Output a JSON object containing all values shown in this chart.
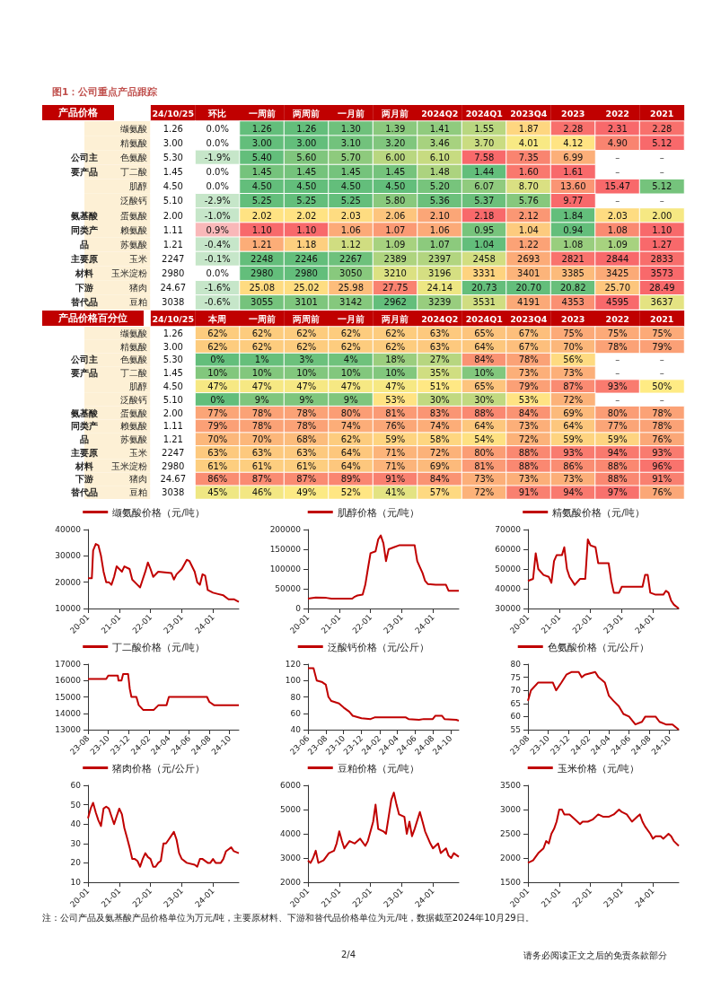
{
  "chart_data": [
    {
      "type": "heatmap",
      "title": "图1：公司重点产品跟踪",
      "ylabel": "产品价格",
      "categories": [
        "24/10/25",
        "环比",
        "一周前",
        "两周前",
        "一月前",
        "两月前",
        "2024Q2",
        "2024Q1",
        "2023Q4",
        "2023",
        "2022",
        "2021"
      ],
      "y_categories": [
        "缬氨酸",
        "精氨酸",
        "色氨酸",
        "丁二酸",
        "肌醇",
        "泛酸钙",
        "蛋氨酸",
        "赖氨酸",
        "苏氨酸",
        "玉米",
        "玉米淀粉",
        "猪肉",
        "豆粕"
      ],
      "y2_categories": [
        null,
        null,
        "公司主",
        "要产品",
        null,
        null,
        "氨基酸",
        "同类产",
        "品",
        "主要原",
        "材料",
        "下游",
        "替代品"
      ],
      "cells": [
        [
          1.26,
          0.0,
          1.26,
          1.26,
          1.3,
          1.39,
          1.41,
          1.55,
          1.87,
          2.28,
          2.31,
          2.28
        ],
        [
          3.0,
          0.0,
          3.0,
          3.0,
          3.1,
          3.2,
          3.46,
          3.7,
          4.01,
          4.12,
          4.9,
          5.12
        ],
        [
          5.3,
          -1.9,
          5.4,
          5.6,
          5.7,
          6.0,
          6.1,
          7.58,
          7.35,
          6.99,
          null,
          null
        ],
        [
          1.45,
          0.0,
          1.45,
          1.45,
          1.45,
          1.45,
          1.48,
          1.44,
          1.6,
          1.61,
          null,
          null
        ],
        [
          4.5,
          0.0,
          4.5,
          4.5,
          4.5,
          4.5,
          5.2,
          6.07,
          8.7,
          13.6,
          15.47,
          5.12
        ],
        [
          5.1,
          -2.9,
          5.25,
          5.25,
          5.25,
          5.8,
          5.36,
          5.37,
          5.76,
          9.77,
          null,
          null
        ],
        [
          2.0,
          -1.0,
          2.02,
          2.02,
          2.03,
          2.06,
          2.1,
          2.18,
          2.12,
          1.84,
          2.03,
          2.0
        ],
        [
          1.11,
          0.9,
          1.1,
          1.1,
          1.06,
          1.07,
          1.06,
          0.95,
          1.04,
          0.94,
          1.08,
          1.1
        ],
        [
          1.21,
          -0.4,
          1.21,
          1.18,
          1.12,
          1.09,
          1.07,
          1.04,
          1.22,
          1.08,
          1.09,
          1.27
        ],
        [
          2247,
          -0.1,
          2248,
          2246,
          2267,
          2389,
          2397,
          2458,
          2693,
          2821,
          2844,
          2833
        ],
        [
          2980,
          0.0,
          2980,
          2980,
          3050,
          3210,
          3196,
          3331,
          3401,
          3385,
          3425,
          3573
        ],
        [
          24.67,
          -1.6,
          25.08,
          25.02,
          25.98,
          27.75,
          24.14,
          20.73,
          20.7,
          20.82,
          25.7,
          28.49
        ],
        [
          3038,
          -0.6,
          3055,
          3101,
          3142,
          2962,
          3239,
          3531,
          4191,
          4353,
          4595,
          3637
        ]
      ],
      "cell_labels": [
        [
          "1.26",
          "0.0%",
          "1.26",
          "1.26",
          "1.30",
          "1.39",
          "1.41",
          "1.55",
          "1.87",
          "2.28",
          "2.31",
          "2.28"
        ],
        [
          "3.00",
          "0.0%",
          "3.00",
          "3.00",
          "3.10",
          "3.20",
          "3.46",
          "3.70",
          "4.01",
          "4.12",
          "4.90",
          "5.12"
        ],
        [
          "5.30",
          "-1.9%",
          "5.40",
          "5.60",
          "5.70",
          "6.00",
          "6.10",
          "7.58",
          "7.35",
          "6.99",
          "–",
          "–"
        ],
        [
          "1.45",
          "0.0%",
          "1.45",
          "1.45",
          "1.45",
          "1.45",
          "1.48",
          "1.44",
          "1.60",
          "1.61",
          "–",
          "–"
        ],
        [
          "4.50",
          "0.0%",
          "4.50",
          "4.50",
          "4.50",
          "4.50",
          "5.20",
          "6.07",
          "8.70",
          "13.60",
          "15.47",
          "5.12"
        ],
        [
          "5.10",
          "-2.9%",
          "5.25",
          "5.25",
          "5.25",
          "5.80",
          "5.36",
          "5.37",
          "5.76",
          "9.77",
          "–",
          "–"
        ],
        [
          "2.00",
          "-1.0%",
          "2.02",
          "2.02",
          "2.03",
          "2.06",
          "2.10",
          "2.18",
          "2.12",
          "1.84",
          "2.03",
          "2.00"
        ],
        [
          "1.11",
          "0.9%",
          "1.10",
          "1.10",
          "1.06",
          "1.07",
          "1.06",
          "0.95",
          "1.04",
          "0.94",
          "1.08",
          "1.10"
        ],
        [
          "1.21",
          "-0.4%",
          "1.21",
          "1.18",
          "1.12",
          "1.09",
          "1.07",
          "1.04",
          "1.22",
          "1.08",
          "1.09",
          "1.27"
        ],
        [
          "2247",
          "-0.1%",
          "2248",
          "2246",
          "2267",
          "2389",
          "2397",
          "2458",
          "2693",
          "2821",
          "2844",
          "2833"
        ],
        [
          "2980",
          "0.0%",
          "2980",
          "2980",
          "3050",
          "3210",
          "3196",
          "3331",
          "3401",
          "3385",
          "3425",
          "3573"
        ],
        [
          "24.67",
          "-1.6%",
          "25.08",
          "25.02",
          "25.98",
          "27.75",
          "24.14",
          "20.73",
          "20.70",
          "20.82",
          "25.70",
          "28.49"
        ],
        [
          "3038",
          "-0.6%",
          "3055",
          "3101",
          "3142",
          "2962",
          "3239",
          "3531",
          "4191",
          "4353",
          "4595",
          "3637"
        ]
      ]
    },
    {
      "type": "heatmap",
      "ylabel": "产品价格百分位",
      "categories": [
        "24/10/25",
        "本周",
        "一周前",
        "两周前",
        "一月前",
        "两月前",
        "2024Q2",
        "2024Q1",
        "2023Q4",
        "2023",
        "2022",
        "2021"
      ],
      "y_categories": [
        "缬氨酸",
        "精氨酸",
        "色氨酸",
        "丁二酸",
        "肌醇",
        "泛酸钙",
        "蛋氨酸",
        "赖氨酸",
        "苏氨酸",
        "玉米",
        "玉米淀粉",
        "猪肉",
        "豆粕"
      ],
      "y2_categories": [
        null,
        null,
        "公司主",
        "要产品",
        null,
        null,
        "氨基酸",
        "同类产",
        "品",
        "主要原",
        "材料",
        "下游",
        "替代品"
      ],
      "cells": [
        [
          1.26,
          62,
          62,
          62,
          62,
          62,
          63,
          65,
          67,
          75,
          75,
          75
        ],
        [
          3.0,
          62,
          62,
          62,
          62,
          62,
          63,
          64,
          67,
          70,
          78,
          79
        ],
        [
          5.3,
          0,
          1,
          3,
          4,
          18,
          27,
          84,
          78,
          56,
          null,
          null
        ],
        [
          1.45,
          10,
          10,
          10,
          10,
          10,
          35,
          10,
          73,
          73,
          null,
          null
        ],
        [
          4.5,
          47,
          47,
          47,
          47,
          47,
          51,
          65,
          79,
          87,
          93,
          50
        ],
        [
          5.1,
          0,
          9,
          9,
          9,
          53,
          30,
          30,
          53,
          72,
          null,
          null
        ],
        [
          2.0,
          77,
          78,
          78,
          80,
          81,
          83,
          88,
          84,
          69,
          80,
          78
        ],
        [
          1.11,
          79,
          78,
          78,
          74,
          76,
          74,
          64,
          73,
          64,
          77,
          78
        ],
        [
          1.21,
          70,
          70,
          68,
          62,
          59,
          58,
          54,
          72,
          59,
          59,
          76
        ],
        [
          2247,
          63,
          63,
          63,
          64,
          71,
          72,
          80,
          88,
          93,
          94,
          93
        ],
        [
          2980,
          61,
          61,
          61,
          64,
          71,
          69,
          81,
          88,
          86,
          88,
          96
        ],
        [
          24.67,
          86,
          87,
          87,
          89,
          91,
          84,
          73,
          73,
          73,
          88,
          91
        ],
        [
          3038,
          45,
          46,
          49,
          52,
          41,
          57,
          72,
          91,
          94,
          97,
          76
        ]
      ],
      "cell_labels": [
        [
          "1.26",
          "62%",
          "62%",
          "62%",
          "62%",
          "62%",
          "63%",
          "65%",
          "67%",
          "75%",
          "75%",
          "75%"
        ],
        [
          "3.00",
          "62%",
          "62%",
          "62%",
          "62%",
          "62%",
          "63%",
          "64%",
          "67%",
          "70%",
          "78%",
          "79%"
        ],
        [
          "5.30",
          "0%",
          "1%",
          "3%",
          "4%",
          "18%",
          "27%",
          "84%",
          "78%",
          "56%",
          "–",
          "–"
        ],
        [
          "1.45",
          "10%",
          "10%",
          "10%",
          "10%",
          "10%",
          "35%",
          "10%",
          "73%",
          "73%",
          "–",
          "–"
        ],
        [
          "4.50",
          "47%",
          "47%",
          "47%",
          "47%",
          "47%",
          "51%",
          "65%",
          "79%",
          "87%",
          "93%",
          "50%"
        ],
        [
          "5.10",
          "0%",
          "9%",
          "9%",
          "9%",
          "53%",
          "30%",
          "30%",
          "53%",
          "72%",
          "–",
          "–"
        ],
        [
          "2.00",
          "77%",
          "78%",
          "78%",
          "80%",
          "81%",
          "83%",
          "88%",
          "84%",
          "69%",
          "80%",
          "78%"
        ],
        [
          "1.11",
          "79%",
          "78%",
          "78%",
          "74%",
          "76%",
          "74%",
          "64%",
          "73%",
          "64%",
          "77%",
          "78%"
        ],
        [
          "1.21",
          "70%",
          "70%",
          "68%",
          "62%",
          "59%",
          "58%",
          "54%",
          "72%",
          "59%",
          "59%",
          "76%"
        ],
        [
          "2247",
          "63%",
          "63%",
          "63%",
          "64%",
          "71%",
          "72%",
          "80%",
          "88%",
          "93%",
          "94%",
          "93%"
        ],
        [
          "2980",
          "61%",
          "61%",
          "61%",
          "64%",
          "71%",
          "69%",
          "81%",
          "88%",
          "86%",
          "88%",
          "96%"
        ],
        [
          "24.67",
          "86%",
          "87%",
          "87%",
          "89%",
          "91%",
          "84%",
          "73%",
          "73%",
          "73%",
          "88%",
          "91%"
        ],
        [
          "3038",
          "45%",
          "46%",
          "49%",
          "52%",
          "41%",
          "57%",
          "72%",
          "91%",
          "94%",
          "97%",
          "76%"
        ]
      ]
    },
    {
      "type": "line",
      "legend": "top",
      "xlim": [
        "2020-01-01",
        "2024-10-29"
      ],
      "ylim": [
        10000,
        40000
      ],
      "yticks": [
        10000,
        20000,
        30000,
        40000
      ],
      "xticks": [
        {
          "value": "2020-01-01",
          "label": "20-01"
        },
        {
          "value": "2021-01-01",
          "label": "21-01"
        },
        {
          "value": "2022-01-01",
          "label": "22-01"
        },
        {
          "value": "2023-01-01",
          "label": "23-01"
        },
        {
          "value": "2024-01-01",
          "label": "24-01"
        }
      ],
      "x": [
        "2020-01-01",
        "2020-02-15",
        "2020-03-01",
        "2020-04-01",
        "2020-05-01",
        "2020-06-01",
        "2020-07-01",
        "2020-08-01",
        "2020-09-01",
        "2020-10-01",
        "2020-11-01",
        "2020-12-01",
        "2021-02-01",
        "2021-03-01",
        "2021-05-01",
        "2021-06-01",
        "2021-08-01",
        "2021-09-01",
        "2021-10-01",
        "2021-11-01",
        "2021-12-01",
        "2022-01-01",
        "2022-02-01",
        "2022-04-01",
        "2022-09-01",
        "2022-10-01",
        "2022-11-01",
        "2023-01-01",
        "2023-03-01",
        "2023-04-01",
        "2023-06-01",
        "2023-07-01",
        "2023-08-01",
        "2023-09-01",
        "2023-10-01",
        "2023-11-01",
        "2024-01-01",
        "2024-03-01",
        "2024-05-01",
        "2024-07-01",
        "2024-09-01",
        "2024-10-29"
      ],
      "series": [
        {
          "name": "缬氨酸价格（元/吨）",
          "color": "#c00000",
          "values": [
            21500,
            21500,
            32000,
            34500,
            34000,
            30000,
            24000,
            20000,
            20000,
            19000,
            22000,
            26000,
            24000,
            26000,
            25000,
            21000,
            19000,
            18000,
            21000,
            24000,
            27500,
            25000,
            22000,
            24000,
            23500,
            21000,
            23000,
            25000,
            28500,
            28000,
            24000,
            20000,
            19000,
            23000,
            22500,
            17000,
            16000,
            15500,
            15000,
            13500,
            13500,
            12500
          ]
        }
      ]
    },
    {
      "type": "line",
      "legend": "top",
      "xlim": [
        "2020-01-01",
        "2024-10-29"
      ],
      "ylim": [
        0,
        200000
      ],
      "yticks": [
        0,
        50000,
        100000,
        150000,
        200000
      ],
      "xticks": [
        {
          "value": "2020-01-01",
          "label": "20-01"
        },
        {
          "value": "2021-01-01",
          "label": "21-01"
        },
        {
          "value": "2022-01-01",
          "label": "22-01"
        },
        {
          "value": "2023-01-01",
          "label": "23-01"
        },
        {
          "value": "2024-01-01",
          "label": "24-01"
        }
      ],
      "x": [
        "2020-01-01",
        "2020-04-01",
        "2020-08-01",
        "2020-10-01",
        "2021-06-01",
        "2021-07-01",
        "2021-08-01",
        "2021-10-01",
        "2021-11-01",
        "2021-12-01",
        "2022-01-01",
        "2022-03-01",
        "2022-04-01",
        "2022-05-01",
        "2022-06-01",
        "2022-07-01",
        "2022-08-01",
        "2022-10-01",
        "2022-12-01",
        "2023-06-01",
        "2023-07-01",
        "2023-08-01",
        "2023-09-01",
        "2023-10-01",
        "2023-11-01",
        "2024-02-01",
        "2024-06-01",
        "2024-07-01",
        "2024-10-29"
      ],
      "series": [
        {
          "name": "肌醇价格（元/吨）",
          "color": "#c00000",
          "values": [
            25000,
            28000,
            27000,
            25000,
            25000,
            30000,
            33000,
            35000,
            60000,
            100000,
            140000,
            145000,
            175000,
            185000,
            165000,
            120000,
            150000,
            155000,
            160000,
            160000,
            120000,
            105000,
            90000,
            70000,
            62000,
            60000,
            60000,
            45000,
            45000
          ]
        }
      ]
    },
    {
      "type": "line",
      "legend": "top",
      "xlim": [
        "2020-01-01",
        "2024-10-29"
      ],
      "ylim": [
        30000,
        70000
      ],
      "yticks": [
        30000,
        40000,
        50000,
        60000,
        70000
      ],
      "xticks": [
        {
          "value": "2020-01-01",
          "label": "20-01"
        },
        {
          "value": "2021-01-01",
          "label": "21-01"
        },
        {
          "value": "2022-01-01",
          "label": "22-01"
        },
        {
          "value": "2023-01-01",
          "label": "23-01"
        },
        {
          "value": "2024-01-01",
          "label": "24-01"
        }
      ],
      "x": [
        "2020-01-01",
        "2020-03-01",
        "2020-04-01",
        "2020-05-01",
        "2020-07-01",
        "2020-09-01",
        "2020-10-01",
        "2020-11-01",
        "2020-12-01",
        "2021-02-01",
        "2021-03-01",
        "2021-04-01",
        "2021-05-01",
        "2021-07-01",
        "2021-09-01",
        "2021-11-01",
        "2021-12-01",
        "2022-01-01",
        "2022-03-01",
        "2022-04-01",
        "2022-08-01",
        "2022-09-01",
        "2022-10-01",
        "2022-12-01",
        "2023-01-01",
        "2023-09-01",
        "2023-10-01",
        "2023-11-01",
        "2023-12-01",
        "2024-02-01",
        "2024-05-01",
        "2024-06-01",
        "2024-07-01",
        "2024-08-01",
        "2024-09-01",
        "2024-10-29"
      ],
      "series": [
        {
          "name": "精氨酸价格（元/吨）",
          "color": "#c00000",
          "values": [
            44000,
            45000,
            58000,
            50000,
            47000,
            46000,
            43000,
            54000,
            57000,
            57000,
            61000,
            50000,
            46000,
            42000,
            45000,
            45000,
            65000,
            62000,
            61000,
            53000,
            53000,
            44000,
            38000,
            38000,
            41000,
            41000,
            47000,
            47000,
            38000,
            37000,
            37000,
            39000,
            38000,
            34000,
            32000,
            30000
          ]
        }
      ]
    },
    {
      "type": "line",
      "legend": "top",
      "xlim": [
        "2023-08-01",
        "2024-10-29"
      ],
      "ylim": [
        13000,
        17000
      ],
      "yticks": [
        13000,
        14000,
        15000,
        16000,
        17000
      ],
      "xticks": [
        {
          "value": "2023-08-01",
          "label": "23-08"
        },
        {
          "value": "2023-10-01",
          "label": "23-10"
        },
        {
          "value": "2023-12-01",
          "label": "23-12"
        },
        {
          "value": "2024-02-01",
          "label": "24-02"
        },
        {
          "value": "2024-04-01",
          "label": "24-04"
        },
        {
          "value": "2024-06-01",
          "label": "24-06"
        },
        {
          "value": "2024-08-01",
          "label": "24-08"
        },
        {
          "value": "2024-10-01",
          "label": "24-10"
        }
      ],
      "x": [
        "2023-08-01",
        "2023-09-25",
        "2023-10-01",
        "2023-10-30",
        "2023-11-01",
        "2023-11-10",
        "2023-11-15",
        "2023-11-30",
        "2023-12-05",
        "2023-12-10",
        "2023-12-25",
        "2024-01-01",
        "2024-01-15",
        "2024-02-15",
        "2024-03-01",
        "2024-03-25",
        "2024-04-01",
        "2024-07-25",
        "2024-08-01",
        "2024-08-15",
        "2024-10-29"
      ],
      "series": [
        {
          "name": "丁二酸价格（元/吨）",
          "color": "#c00000",
          "values": [
            16100,
            16100,
            16300,
            16300,
            16000,
            16000,
            16400,
            16400,
            15500,
            15000,
            15000,
            14500,
            14200,
            14200,
            14500,
            14500,
            15000,
            15000,
            14700,
            14500,
            14500
          ]
        }
      ]
    },
    {
      "type": "line",
      "legend": "top",
      "xlim": [
        "2023-06-01",
        "2024-10-29"
      ],
      "ylim": [
        40,
        120
      ],
      "yticks": [
        40,
        60,
        80,
        100,
        120
      ],
      "xticks": [
        {
          "value": "2023-06-01",
          "label": "23-06"
        },
        {
          "value": "2023-08-01",
          "label": "23-08"
        },
        {
          "value": "2023-10-01",
          "label": "23-10"
        },
        {
          "value": "2023-12-01",
          "label": "23-12"
        },
        {
          "value": "2024-02-01",
          "label": "24-02"
        },
        {
          "value": "2024-04-01",
          "label": "24-04"
        },
        {
          "value": "2024-06-01",
          "label": "24-06"
        },
        {
          "value": "2024-08-01",
          "label": "24-08"
        },
        {
          "value": "2024-10-01",
          "label": "24-10"
        }
      ],
      "x": [
        "2023-06-01",
        "2023-06-20",
        "2023-07-01",
        "2023-07-20",
        "2023-08-01",
        "2023-08-10",
        "2023-08-20",
        "2023-09-15",
        "2023-10-01",
        "2023-10-20",
        "2023-11-01",
        "2023-12-01",
        "2024-01-01",
        "2024-01-15",
        "2024-05-01",
        "2024-05-10",
        "2024-06-15",
        "2024-07-01",
        "2024-08-01",
        "2024-08-10",
        "2024-09-01",
        "2024-09-10",
        "2024-10-20",
        "2024-10-29"
      ],
      "series": [
        {
          "name": "泛酸钙价格（元/公斤）",
          "color": "#c00000",
          "values": [
            115,
            115,
            100,
            98,
            95,
            80,
            75,
            72,
            67,
            62,
            57,
            54,
            53,
            55,
            55,
            53,
            52,
            53,
            53,
            57,
            57,
            53,
            52,
            51
          ]
        }
      ]
    },
    {
      "type": "line",
      "legend": "top",
      "xlim": [
        "2023-08-01",
        "2024-10-29"
      ],
      "ylim": [
        55,
        80
      ],
      "yticks": [
        55,
        60,
        65,
        70,
        75,
        80
      ],
      "xticks": [
        {
          "value": "2023-08-01",
          "label": "23-08"
        },
        {
          "value": "2023-10-01",
          "label": "23-10"
        },
        {
          "value": "2023-12-01",
          "label": "23-12"
        },
        {
          "value": "2024-02-01",
          "label": "24-02"
        },
        {
          "value": "2024-04-01",
          "label": "24-04"
        },
        {
          "value": "2024-06-01",
          "label": "24-06"
        },
        {
          "value": "2024-08-01",
          "label": "24-08"
        },
        {
          "value": "2024-10-01",
          "label": "24-10"
        }
      ],
      "x": [
        "2023-08-01",
        "2023-08-10",
        "2023-09-01",
        "2023-10-15",
        "2023-10-25",
        "2023-11-10",
        "2023-11-25",
        "2023-12-10",
        "2024-01-01",
        "2024-01-10",
        "2024-01-20",
        "2024-02-20",
        "2024-03-01",
        "2024-03-20",
        "2024-04-01",
        "2024-04-15",
        "2024-05-01",
        "2024-05-15",
        "2024-06-01",
        "2024-06-20",
        "2024-07-10",
        "2024-07-20",
        "2024-08-20",
        "2024-09-01",
        "2024-09-20",
        "2024-10-10",
        "2024-10-29"
      ],
      "series": [
        {
          "name": "色氨酸价格（元/公斤）",
          "color": "#c00000",
          "values": [
            66,
            70,
            73,
            73,
            70,
            73,
            76,
            77,
            77,
            75,
            76,
            77,
            75,
            73,
            68,
            66,
            64,
            61,
            60,
            57,
            58,
            60,
            60,
            58,
            57,
            57,
            55
          ]
        }
      ]
    },
    {
      "type": "line",
      "legend": "top",
      "xlim": [
        "2020-01-01",
        "2024-10-29"
      ],
      "ylim": [
        10,
        60
      ],
      "yticks": [
        10,
        20,
        30,
        40,
        50,
        60
      ],
      "xticks": [
        {
          "value": "2020-01-01",
          "label": "20-01"
        },
        {
          "value": "2021-01-01",
          "label": "21-01"
        },
        {
          "value": "2022-01-01",
          "label": "22-01"
        },
        {
          "value": "2023-01-01",
          "label": "23-01"
        },
        {
          "value": "2024-01-01",
          "label": "24-01"
        }
      ],
      "x": [
        "2020-01-01",
        "2020-02-01",
        "2020-03-01",
        "2020-04-01",
        "2020-05-01",
        "2020-06-01",
        "2020-07-01",
        "2020-08-01",
        "2020-09-01",
        "2020-10-01",
        "2020-11-01",
        "2020-12-01",
        "2021-01-01",
        "2021-02-01",
        "2021-03-01",
        "2021-04-01",
        "2021-05-01",
        "2021-06-01",
        "2021-07-01",
        "2021-08-01",
        "2021-09-01",
        "2021-10-01",
        "2021-11-01",
        "2021-12-01",
        "2022-01-01",
        "2022-02-01",
        "2022-03-01",
        "2022-04-01",
        "2022-05-01",
        "2022-06-01",
        "2022-07-01",
        "2022-08-01",
        "2022-09-01",
        "2022-10-01",
        "2022-11-01",
        "2022-12-01",
        "2023-01-01",
        "2023-03-01",
        "2023-06-01",
        "2023-07-01",
        "2023-08-01",
        "2023-09-01",
        "2023-11-01",
        "2023-12-01",
        "2024-01-01",
        "2024-02-01",
        "2024-04-01",
        "2024-05-01",
        "2024-06-01",
        "2024-08-01",
        "2024-09-01",
        "2024-10-29"
      ],
      "series": [
        {
          "name": "猪肉价格（元/公斤）",
          "color": "#c00000",
          "values": [
            43,
            48,
            51,
            46,
            42,
            39,
            48,
            49,
            48,
            44,
            40,
            44,
            48,
            45,
            38,
            33,
            28,
            22,
            22,
            21,
            18,
            22,
            25,
            23,
            22,
            18,
            18,
            20,
            21,
            30,
            30,
            32,
            34,
            36,
            32,
            25,
            22,
            20,
            19,
            18,
            22,
            22,
            20,
            20,
            22,
            20,
            20,
            22,
            26,
            28,
            26,
            25
          ]
        }
      ]
    },
    {
      "type": "line",
      "legend": "top",
      "xlim": [
        "2020-01-01",
        "2024-10-29"
      ],
      "ylim": [
        2000,
        6000
      ],
      "yticks": [
        2000,
        3000,
        4000,
        5000,
        6000
      ],
      "xticks": [
        {
          "value": "2020-01-01",
          "label": "20-01"
        },
        {
          "value": "2021-01-01",
          "label": "21-01"
        },
        {
          "value": "2022-01-01",
          "label": "22-01"
        },
        {
          "value": "2023-01-01",
          "label": "23-01"
        },
        {
          "value": "2024-01-01",
          "label": "24-01"
        }
      ],
      "x": [
        "2020-01-01",
        "2020-02-01",
        "2020-03-01",
        "2020-04-01",
        "2020-05-01",
        "2020-07-01",
        "2020-09-01",
        "2020-11-01",
        "2020-12-01",
        "2021-01-01",
        "2021-02-01",
        "2021-03-01",
        "2021-05-01",
        "2021-07-01",
        "2021-09-01",
        "2021-11-01",
        "2021-12-01",
        "2022-02-01",
        "2022-03-01",
        "2022-04-01",
        "2022-06-01",
        "2022-07-01",
        "2022-08-01",
        "2022-09-01",
        "2022-10-01",
        "2022-11-01",
        "2022-12-01",
        "2023-02-01",
        "2023-03-01",
        "2023-04-01",
        "2023-05-01",
        "2023-06-01",
        "2023-08-01",
        "2023-09-01",
        "2023-10-01",
        "2023-12-01",
        "2024-01-01",
        "2024-03-01",
        "2024-04-01",
        "2024-06-01",
        "2024-07-01",
        "2024-08-01",
        "2024-09-01",
        "2024-10-29"
      ],
      "series": [
        {
          "name": "豆粕价格（元/吨）",
          "color": "#c00000",
          "values": [
            2900,
            2800,
            3000,
            3300,
            2800,
            2900,
            3200,
            3300,
            3600,
            4100,
            3700,
            3400,
            3700,
            3600,
            3800,
            3500,
            3700,
            4500,
            5200,
            4200,
            4100,
            4000,
            4700,
            5400,
            5700,
            5200,
            4800,
            4700,
            4000,
            4500,
            3900,
            4200,
            4900,
            4500,
            4100,
            3600,
            3400,
            3600,
            3200,
            3400,
            3100,
            3000,
            3200,
            3050
          ]
        }
      ]
    },
    {
      "type": "line",
      "legend": "top",
      "xlim": [
        "2020-01-01",
        "2024-10-29"
      ],
      "ylim": [
        1500,
        3500
      ],
      "yticks": [
        1500,
        2000,
        2500,
        3000,
        3500
      ],
      "xticks": [
        {
          "value": "2020-01-01",
          "label": "20-01"
        },
        {
          "value": "2021-01-01",
          "label": "21-01"
        },
        {
          "value": "2022-01-01",
          "label": "22-01"
        },
        {
          "value": "2023-01-01",
          "label": "23-01"
        },
        {
          "value": "2024-01-01",
          "label": "24-01"
        }
      ],
      "x": [
        "2020-01-01",
        "2020-03-01",
        "2020-05-01",
        "2020-07-01",
        "2020-08-01",
        "2020-09-01",
        "2020-10-01",
        "2020-11-01",
        "2020-12-01",
        "2021-01-01",
        "2021-02-01",
        "2021-03-01",
        "2021-05-01",
        "2021-07-01",
        "2021-09-01",
        "2021-10-01",
        "2021-12-01",
        "2022-02-01",
        "2022-04-01",
        "2022-06-01",
        "2022-08-01",
        "2022-10-01",
        "2022-12-01",
        "2023-01-01",
        "2023-03-01",
        "2023-05-01",
        "2023-07-01",
        "2023-08-01",
        "2023-09-01",
        "2023-10-01",
        "2023-12-01",
        "2024-01-01",
        "2024-02-01",
        "2024-04-01",
        "2024-05-01",
        "2024-06-01",
        "2024-07-01",
        "2024-08-01",
        "2024-09-01",
        "2024-10-29"
      ],
      "series": [
        {
          "name": "玉米价格（元/吨）",
          "color": "#c00000",
          "values": [
            1900,
            1950,
            2100,
            2200,
            2350,
            2300,
            2500,
            2600,
            2750,
            3000,
            3000,
            2900,
            2900,
            2800,
            2700,
            2750,
            2750,
            2800,
            2900,
            2850,
            2850,
            2900,
            3000,
            2950,
            2900,
            2750,
            2850,
            2900,
            2750,
            2650,
            2500,
            2400,
            2450,
            2450,
            2400,
            2450,
            2500,
            2450,
            2350,
            2250
          ]
        }
      ],
      "annotations": [
        "注：公司产品及氨基酸产品价格单位为万元/吨，主要原材料、下游和替代品价格单位为元/吨，数据截至2024年10月29日。",
        "2/4",
        "请务必阅读正文之后的免责条款部分"
      ]
    }
  ]
}
